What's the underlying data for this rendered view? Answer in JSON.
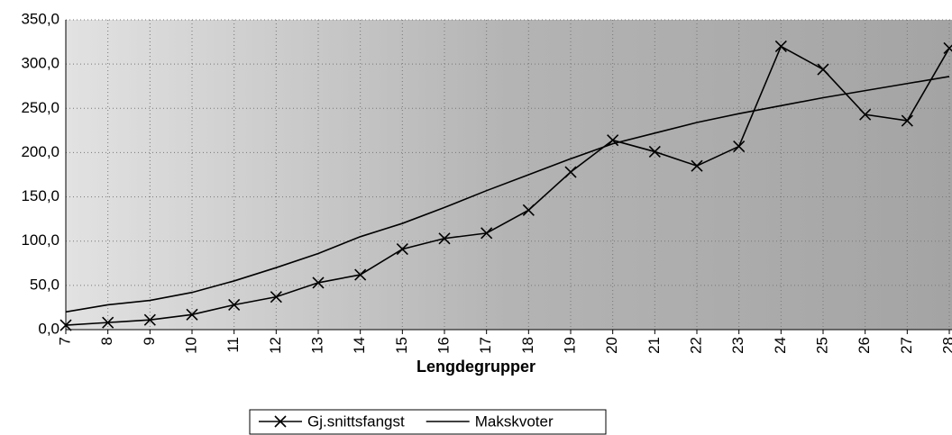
{
  "chart_data": {
    "type": "line",
    "x_label": "Lengdegrupper",
    "categories": [
      "7",
      "8",
      "9",
      "10",
      "11",
      "12",
      "13",
      "14",
      "15",
      "16",
      "17",
      "18",
      "19",
      "20",
      "21",
      "22",
      "23",
      "24",
      "25",
      "26",
      "27",
      "28"
    ],
    "series": [
      {
        "name": "Gj.snittsfangst",
        "color": "#000000",
        "marker": "x",
        "values": [
          5,
          8,
          11,
          17,
          28,
          37,
          53,
          62,
          91,
          103,
          109,
          135,
          178,
          214,
          201,
          185,
          207,
          320,
          294,
          243,
          236,
          318
        ]
      },
      {
        "name": "Makskvoter",
        "color": "#000000",
        "marker": "none",
        "values": [
          20,
          28,
          33,
          42,
          55,
          70,
          86,
          105,
          120,
          138,
          157,
          175,
          193,
          210,
          222,
          234,
          244,
          253,
          262,
          270,
          278,
          286
        ]
      }
    ],
    "ylim": [
      0,
      350
    ],
    "yticks": [
      {
        "value": 0,
        "label": "0,0"
      },
      {
        "value": 50,
        "label": "50,0"
      },
      {
        "value": 100,
        "label": "100,0"
      },
      {
        "value": 150,
        "label": "150,0"
      },
      {
        "value": 200,
        "label": "200,0"
      },
      {
        "value": 250,
        "label": "250,0"
      },
      {
        "value": 300,
        "label": "300,0"
      },
      {
        "value": 350,
        "label": "350,0"
      }
    ],
    "grid": true
  }
}
